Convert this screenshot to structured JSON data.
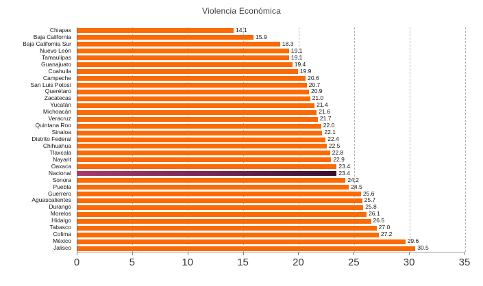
{
  "title": "Violencia Económica",
  "chart_data": {
    "type": "bar",
    "orientation": "horizontal",
    "title": "Violencia Económica",
    "xlabel": "",
    "ylabel": "",
    "xlim": [
      0,
      35
    ],
    "xticks": [
      0,
      5,
      10,
      15,
      20,
      25,
      30,
      35
    ],
    "grid": "vertical-dashed",
    "legend": "none",
    "value_labels": true,
    "value_format": "one-decimal",
    "highlight_category": "Nacional",
    "categories": [
      "Chiapas",
      "Baja California",
      "Baja California Sur",
      "Nuevo León",
      "Tamaulipas",
      "Guanajuato",
      "Coahuila",
      "Campeche",
      "San Luis Potosí",
      "Querétaro",
      "Zacatecas",
      "Yucatán",
      "Michoacán",
      "Veracruz",
      "Quintana Roo",
      "Sinaloa",
      "Distrito Federal",
      "Chihuahua",
      "Tlaxcala",
      "Nayarit",
      "Oaxaca",
      "Nacional",
      "Sonora",
      "Puebla",
      "Guerrero",
      "Aguascalientes",
      "Durango",
      "Morelos",
      "Hidalgo",
      "Tabasco",
      "Colima",
      "México",
      "Jalisco"
    ],
    "values": [
      14.1,
      15.9,
      18.3,
      19.1,
      19.1,
      19.4,
      19.9,
      20.6,
      20.7,
      20.9,
      21.0,
      21.4,
      21.6,
      21.7,
      22.0,
      22.1,
      22.4,
      22.5,
      22.8,
      22.9,
      23.4,
      23.4,
      24.2,
      24.5,
      25.6,
      25.7,
      25.8,
      26.1,
      26.5,
      27.0,
      27.2,
      29.6,
      30.5
    ]
  },
  "colors": {
    "bar": "#FB6A04",
    "highlight_start": "#A8396C",
    "highlight_mid": "#73254F",
    "highlight_end": "#380F2E",
    "grid": "#B2B2B2",
    "axis_left": "#6A6A6A",
    "axis_bottom": "#9A9A9A",
    "label_text": "#141414",
    "tick_text": "#3A3A3A",
    "title_text": "#3C3C3C"
  }
}
